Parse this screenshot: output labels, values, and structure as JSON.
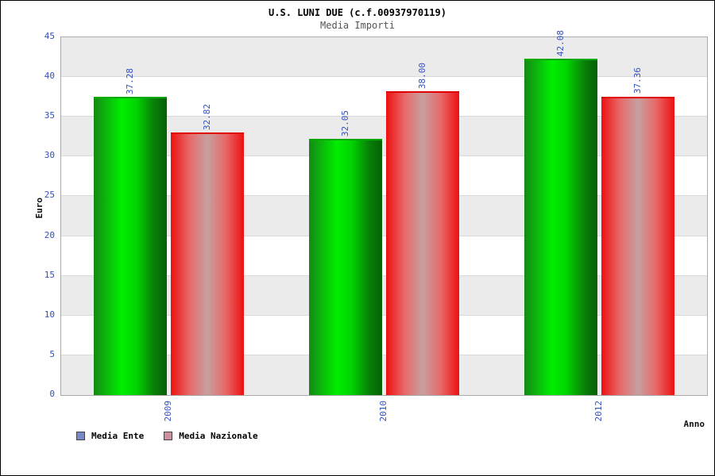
{
  "header": {
    "title": "U.S. LUNI DUE (c.f.00937970119)",
    "subtitle": "Media Importi"
  },
  "chart_data": {
    "type": "bar",
    "title": "U.S. LUNI DUE (c.f.00937970119)",
    "subtitle": "Media Importi",
    "xlabel": "Anno",
    "ylabel": "Euro",
    "ylim": [
      0,
      45
    ],
    "yticks": [
      0,
      5,
      10,
      15,
      20,
      25,
      30,
      35,
      40,
      45
    ],
    "grid": true,
    "banded_background": true,
    "legend_position": "bottom-left",
    "categories": [
      "2009",
      "2010",
      "2012"
    ],
    "series": [
      {
        "name": "Media Ente",
        "values": [
          37.28,
          32.05,
          42.08
        ],
        "bar_color": "#00d400"
      },
      {
        "name": "Media Nazionale",
        "values": [
          32.82,
          38.0,
          37.36
        ],
        "bar_color": "#ee1010"
      }
    ],
    "value_labels": [
      [
        "37.28",
        "32.05",
        "42.08"
      ],
      [
        "32.82",
        "38.00",
        "37.36"
      ]
    ]
  },
  "legend": {
    "items": [
      {
        "label": "Media Ente",
        "swatch_color": "#7989c8"
      },
      {
        "label": "Media Nazionale",
        "swatch_color": "#cf8f9f"
      }
    ]
  },
  "colors": {
    "tick_label": "#3350c0",
    "value_label": "#3350c0",
    "stripe": "#ebebeb",
    "gridline": "#d9d9d9",
    "subtitle": "#555555"
  }
}
